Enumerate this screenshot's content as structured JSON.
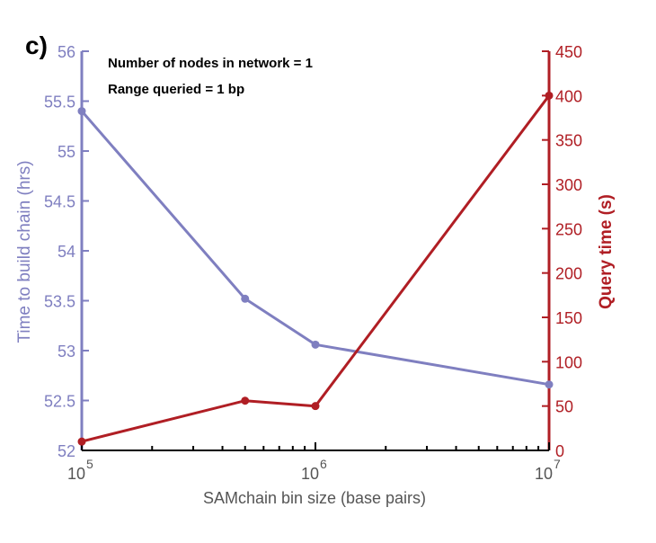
{
  "panel_label": "c)",
  "colors": {
    "left_series": "#7f7fc0",
    "right_series": "#b01e24",
    "axis": "#000000"
  },
  "chart_data": {
    "type": "line",
    "title": "",
    "xlabel": "SAMchain bin size (base pairs)",
    "xscale": "log",
    "xlim": [
      100000,
      10000000
    ],
    "x_ticks": [
      {
        "value": 100000,
        "base": "10",
        "exp": "5"
      },
      {
        "value": 1000000,
        "base": "10",
        "exp": "6"
      },
      {
        "value": 10000000,
        "base": "10",
        "exp": "7"
      }
    ],
    "left_axis": {
      "label": "Time to build chain (hrs)",
      "ylim": [
        52,
        56
      ],
      "ticks": [
        "52",
        "52.5",
        "53",
        "53.5",
        "54",
        "54.5",
        "55",
        "55.5",
        "56"
      ]
    },
    "right_axis": {
      "label": "Query time (s)",
      "ylim": [
        0,
        450
      ],
      "ticks": [
        "0",
        "50",
        "100",
        "150",
        "200",
        "250",
        "300",
        "350",
        "400",
        "450"
      ]
    },
    "series": [
      {
        "axis": "left",
        "x": [
          100000,
          500000,
          1000000,
          10000000
        ],
        "y": [
          55.4,
          53.52,
          53.06,
          52.66
        ]
      },
      {
        "axis": "right",
        "x": [
          100000,
          500000,
          1000000,
          10000000
        ],
        "y": [
          10,
          56,
          50,
          400
        ]
      }
    ],
    "annotations": [
      "Number of nodes in network = 1",
      "Range queried = 1 bp"
    ]
  }
}
